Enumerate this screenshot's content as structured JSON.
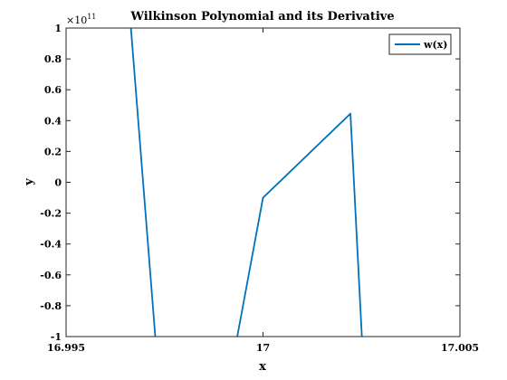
{
  "chart_data": {
    "type": "line",
    "title": "Wilkinson Polynomial and its Derivative",
    "xlabel": "x",
    "ylabel": "y",
    "y_exponent_base": "×10",
    "y_exponent_power": "11",
    "y_multiplier": 100000000000,
    "xlim": [
      16.995,
      17.005
    ],
    "ylim": [
      -1,
      1
    ],
    "x_ticks": [
      16.995,
      17,
      17.005
    ],
    "x_tick_labels": [
      "16.995",
      "17",
      "17.005"
    ],
    "y_ticks": [
      1,
      0.8,
      0.6,
      0.4,
      0.2,
      0,
      -0.2,
      -0.4,
      -0.6,
      -0.8,
      -1
    ],
    "y_tick_labels": [
      "1",
      "0.8",
      "0.6",
      "0.4",
      "0.2",
      "0",
      "-0.2",
      "-0.4",
      "-0.6",
      "-0.8",
      "-1"
    ],
    "grid": false,
    "legend_position": "top-right",
    "series": [
      {
        "name": "w(x)",
        "color": "#0072BD",
        "x": [
          16.99664,
          16.99728,
          16.99931,
          17.0,
          17.00222,
          17.00252
        ],
        "y": [
          1.02,
          -1.05,
          -1.05,
          -0.1,
          0.445,
          -1.05
        ]
      }
    ]
  }
}
